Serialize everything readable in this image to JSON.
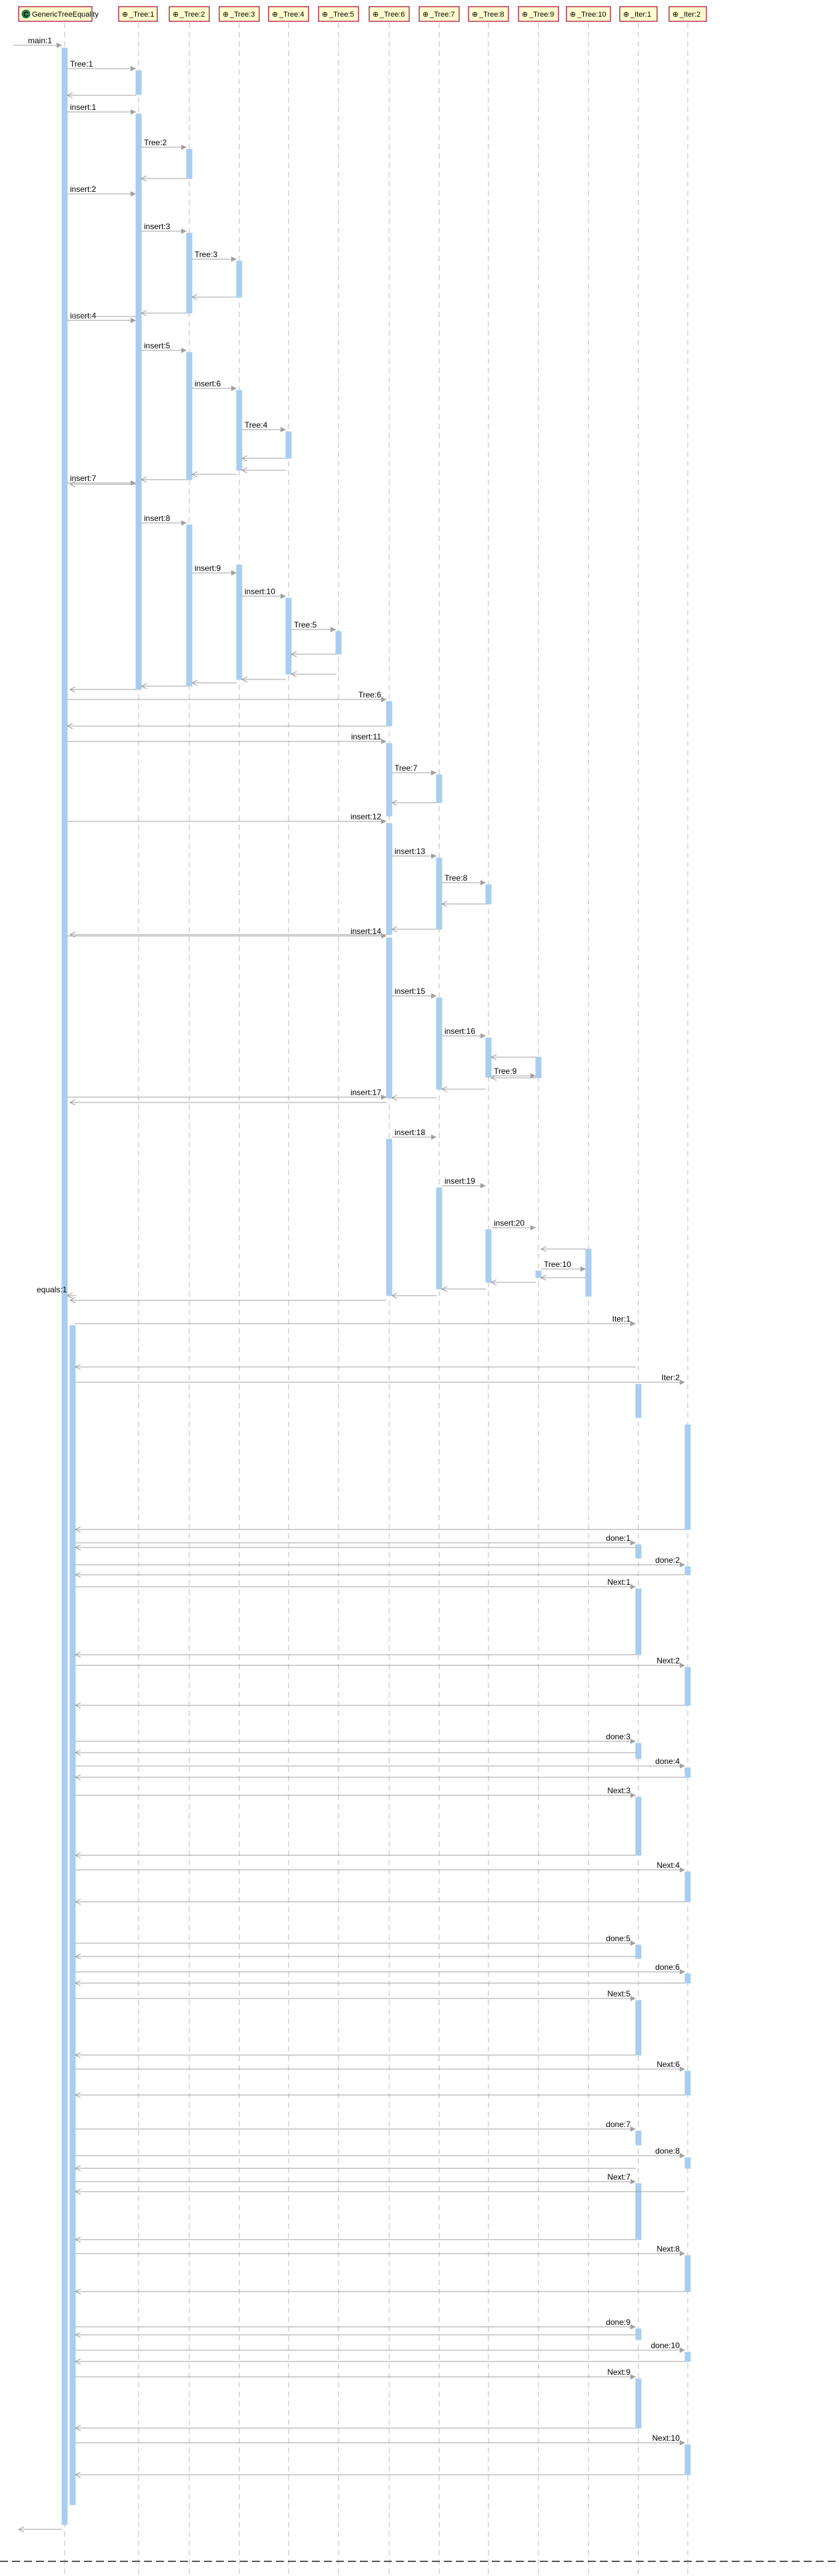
{
  "participants": [
    {
      "id": "GenericTreeEquality",
      "label": "GenericTreeEquality",
      "icon": "class-icon-green-c"
    },
    {
      "id": "Tree1",
      "label": "_Tree:1",
      "icon": "object-icon"
    },
    {
      "id": "Tree2",
      "label": "_Tree:2",
      "icon": "object-icon"
    },
    {
      "id": "Tree3",
      "label": "_Tree:3",
      "icon": "object-icon"
    },
    {
      "id": "Tree4",
      "label": "_Tree:4",
      "icon": "object-icon"
    },
    {
      "id": "Tree5",
      "label": "_Tree:5",
      "icon": "object-icon"
    },
    {
      "id": "Tree6",
      "label": "_Tree:6",
      "icon": "object-icon"
    },
    {
      "id": "Tree7",
      "label": "_Tree:7",
      "icon": "object-icon"
    },
    {
      "id": "Tree8",
      "label": "_Tree:8",
      "icon": "object-icon"
    },
    {
      "id": "Tree9",
      "label": "_Tree:9",
      "icon": "object-icon"
    },
    {
      "id": "Tree10",
      "label": "_Tree:10",
      "icon": "object-icon"
    },
    {
      "id": "Iter1",
      "label": "_Iter:1",
      "icon": "object-icon"
    },
    {
      "id": "Iter2",
      "label": "_Iter:2",
      "icon": "object-icon"
    }
  ],
  "messages": [
    {
      "label": "main:1",
      "from": "start",
      "to": "GenericTreeEquality"
    },
    {
      "label": "Tree:1",
      "from": "GenericTreeEquality",
      "to": "Tree1"
    },
    {
      "label": "insert:1",
      "from": "GenericTreeEquality",
      "to": "Tree1"
    },
    {
      "label": "Tree:2",
      "from": "Tree1",
      "to": "Tree2"
    },
    {
      "label": "insert:2",
      "from": "GenericTreeEquality",
      "to": "Tree1"
    },
    {
      "label": "insert:3",
      "from": "Tree1",
      "to": "Tree2"
    },
    {
      "label": "Tree:3",
      "from": "Tree2",
      "to": "Tree3"
    },
    {
      "label": "insert:4",
      "from": "GenericTreeEquality",
      "to": "Tree1"
    },
    {
      "label": "insert:5",
      "from": "Tree1",
      "to": "Tree2"
    },
    {
      "label": "insert:6",
      "from": "Tree2",
      "to": "Tree3"
    },
    {
      "label": "Tree:4",
      "from": "Tree3",
      "to": "Tree4"
    },
    {
      "label": "insert:7",
      "from": "GenericTreeEquality",
      "to": "Tree1"
    },
    {
      "label": "insert:8",
      "from": "Tree1",
      "to": "Tree2"
    },
    {
      "label": "insert:9",
      "from": "Tree2",
      "to": "Tree3"
    },
    {
      "label": "insert:10",
      "from": "Tree3",
      "to": "Tree4"
    },
    {
      "label": "Tree:5",
      "from": "Tree4",
      "to": "Tree5"
    },
    {
      "label": "Tree:6",
      "from": "GenericTreeEquality",
      "to": "Tree6"
    },
    {
      "label": "insert:11",
      "from": "GenericTreeEquality",
      "to": "Tree6"
    },
    {
      "label": "Tree:7",
      "from": "Tree6",
      "to": "Tree7"
    },
    {
      "label": "insert:12",
      "from": "GenericTreeEquality",
      "to": "Tree6"
    },
    {
      "label": "insert:13",
      "from": "Tree6",
      "to": "Tree7"
    },
    {
      "label": "Tree:8",
      "from": "Tree7",
      "to": "Tree8"
    },
    {
      "label": "insert:14",
      "from": "GenericTreeEquality",
      "to": "Tree6"
    },
    {
      "label": "insert:15",
      "from": "Tree6",
      "to": "Tree7"
    },
    {
      "label": "insert:16",
      "from": "Tree7",
      "to": "Tree8"
    },
    {
      "label": "Tree:9",
      "from": "Tree8",
      "to": "Tree9"
    },
    {
      "label": "insert:17",
      "from": "GenericTreeEquality",
      "to": "Tree6"
    },
    {
      "label": "insert:18",
      "from": "Tree6",
      "to": "Tree7"
    },
    {
      "label": "insert:19",
      "from": "Tree7",
      "to": "Tree8"
    },
    {
      "label": "insert:20",
      "from": "Tree8",
      "to": "Tree9"
    },
    {
      "label": "Tree:10",
      "from": "Tree9",
      "to": "Tree10"
    },
    {
      "label": "equals:1",
      "from": "GenericTreeEquality",
      "to": "GenericTreeEquality"
    },
    {
      "label": "Iter:1",
      "from": "GenericTreeEquality",
      "to": "Iter1"
    },
    {
      "label": "Iter:2",
      "from": "GenericTreeEquality",
      "to": "Iter2"
    },
    {
      "label": "done:1",
      "from": "GenericTreeEquality",
      "to": "Iter1"
    },
    {
      "label": "done:2",
      "from": "GenericTreeEquality",
      "to": "Iter2"
    },
    {
      "label": "Next:1",
      "from": "GenericTreeEquality",
      "to": "Iter1"
    },
    {
      "label": "Next:2",
      "from": "GenericTreeEquality",
      "to": "Iter2"
    },
    {
      "label": "done:3",
      "from": "GenericTreeEquality",
      "to": "Iter1"
    },
    {
      "label": "done:4",
      "from": "GenericTreeEquality",
      "to": "Iter2"
    },
    {
      "label": "Next:3",
      "from": "GenericTreeEquality",
      "to": "Iter1"
    },
    {
      "label": "Next:4",
      "from": "GenericTreeEquality",
      "to": "Iter2"
    },
    {
      "label": "done:5",
      "from": "GenericTreeEquality",
      "to": "Iter1"
    },
    {
      "label": "done:6",
      "from": "GenericTreeEquality",
      "to": "Iter2"
    },
    {
      "label": "Next:5",
      "from": "GenericTreeEquality",
      "to": "Iter1"
    },
    {
      "label": "Next:6",
      "from": "GenericTreeEquality",
      "to": "Iter2"
    },
    {
      "label": "done:7",
      "from": "GenericTreeEquality",
      "to": "Iter1"
    },
    {
      "label": "done:8",
      "from": "GenericTreeEquality",
      "to": "Iter2"
    },
    {
      "label": "Next:7",
      "from": "GenericTreeEquality",
      "to": "Iter1"
    },
    {
      "label": "Next:8",
      "from": "GenericTreeEquality",
      "to": "Iter2"
    },
    {
      "label": "done:9",
      "from": "GenericTreeEquality",
      "to": "Iter1"
    },
    {
      "label": "done:10",
      "from": "GenericTreeEquality",
      "to": "Iter2"
    },
    {
      "label": "Next:9",
      "from": "GenericTreeEquality",
      "to": "Iter1"
    },
    {
      "label": "Next:10",
      "from": "GenericTreeEquality",
      "to": "Iter2"
    }
  ],
  "colors": {
    "activation": "#a9cdef",
    "header_fill": "#fefece",
    "header_border": "#a80036",
    "lifeline": "#bbbbbb",
    "arrow": "#a0a0a0",
    "class_icon": "#2e8b57"
  }
}
